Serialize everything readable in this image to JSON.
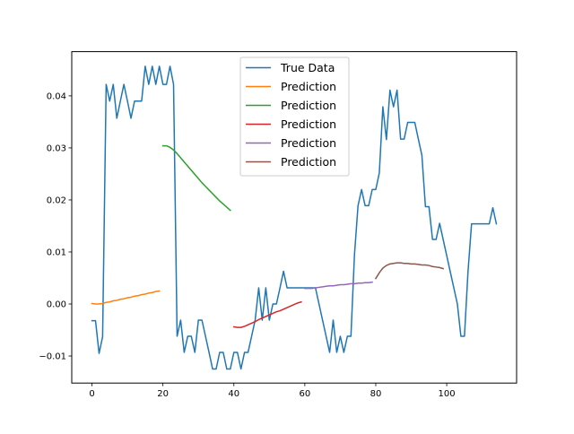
{
  "chart_data": {
    "type": "line",
    "title": "",
    "xlabel": "",
    "ylabel": "",
    "xlim": [
      -5.7,
      119.7
    ],
    "ylim": [
      -0.0152,
      0.0485
    ],
    "x_ticks": [
      0,
      20,
      40,
      60,
      80,
      100
    ],
    "x_tick_labels": [
      "0",
      "20",
      "40",
      "60",
      "80",
      "100"
    ],
    "y_ticks": [
      -0.01,
      0.0,
      0.01,
      0.02,
      0.03,
      0.04
    ],
    "y_tick_labels": [
      "−0.01",
      "0.00",
      "0.01",
      "0.02",
      "0.03",
      "0.04"
    ],
    "grid": false,
    "legend_position": "upper center",
    "series": [
      {
        "name": "True Data",
        "color": "#1f77b4",
        "x_start": 0,
        "values": [
          -0.0032,
          -0.0032,
          -0.0095,
          -0.0063,
          0.0422,
          0.039,
          0.0422,
          0.0357,
          0.039,
          0.0422,
          0.039,
          0.0357,
          0.039,
          0.039,
          0.039,
          0.0457,
          0.0422,
          0.0457,
          0.0422,
          0.0457,
          0.0422,
          0.0422,
          0.0457,
          0.0422,
          -0.0062,
          -0.0031,
          -0.0093,
          -0.0062,
          -0.0062,
          -0.0093,
          -0.0031,
          -0.0031,
          -0.0062,
          -0.0093,
          -0.0125,
          -0.0125,
          -0.0093,
          -0.0093,
          -0.0125,
          -0.0125,
          -0.0093,
          -0.0093,
          -0.0125,
          -0.0093,
          -0.0093,
          -0.0062,
          -0.0031,
          0.0031,
          -0.0031,
          0.0031,
          -0.0031,
          0.0,
          0.0,
          0.0031,
          0.0063,
          0.0031,
          0.0031,
          0.0031,
          0.0031,
          0.0031,
          0.0031,
          0.0031,
          0.0031,
          0.0031,
          0.0,
          -0.0031,
          -0.0062,
          -0.0093,
          -0.0031,
          -0.0093,
          -0.0062,
          -0.0093,
          -0.0062,
          -0.0062,
          0.0095,
          0.0189,
          0.022,
          0.0189,
          0.0189,
          0.022,
          0.022,
          0.0252,
          0.0379,
          0.0316,
          0.0411,
          0.0379,
          0.0411,
          0.0317,
          0.0317,
          0.0349,
          0.0349,
          0.0349,
          0.0317,
          0.0286,
          0.0187,
          0.0187,
          0.0124,
          0.0124,
          0.0155,
          0.0124,
          0.0093,
          0.0062,
          0.0031,
          0.0,
          -0.0062,
          -0.0062,
          0.0062,
          0.0154,
          0.0154,
          0.0154,
          0.0154,
          0.0154,
          0.0154,
          0.0185,
          0.0154
        ]
      },
      {
        "name": "Prediction",
        "color": "#ff7f0e",
        "x_start": 0,
        "values": [
          0.0001,
          0.0,
          0.0,
          0.0001,
          0.0003,
          0.0004,
          0.0006,
          0.0007,
          0.0009,
          0.001,
          0.0012,
          0.0013,
          0.0015,
          0.0016,
          0.0018,
          0.0019,
          0.0021,
          0.0022,
          0.0024,
          0.0025
        ]
      },
      {
        "name": "Prediction",
        "color": "#2ca02c",
        "x_start": 20,
        "values": [
          0.0304,
          0.0304,
          0.0301,
          0.0296,
          0.0289,
          0.0281,
          0.0273,
          0.0265,
          0.0257,
          0.0249,
          0.0241,
          0.0233,
          0.0226,
          0.0219,
          0.0212,
          0.0205,
          0.0198,
          0.0192,
          0.0186,
          0.018
        ]
      },
      {
        "name": "Prediction",
        "color": "#d62728",
        "x_start": 40,
        "values": [
          -0.0044,
          -0.0045,
          -0.0045,
          -0.0043,
          -0.004,
          -0.0037,
          -0.0034,
          -0.003,
          -0.0027,
          -0.0024,
          -0.0021,
          -0.0018,
          -0.0015,
          -0.0013,
          -0.001,
          -0.0007,
          -0.0004,
          -0.0001,
          0.0002,
          0.0004
        ]
      },
      {
        "name": "Prediction",
        "color": "#9467bd",
        "x_start": 60,
        "values": [
          0.003,
          0.003,
          0.003,
          0.0031,
          0.0032,
          0.0033,
          0.0034,
          0.0035,
          0.0035,
          0.0036,
          0.0037,
          0.0037,
          0.0038,
          0.0039,
          0.0039,
          0.004,
          0.004,
          0.0041,
          0.0041,
          0.0042
        ]
      },
      {
        "name": "Prediction",
        "color": "#8c564b",
        "x_start": 80,
        "values": [
          0.0049,
          0.006,
          0.0069,
          0.0074,
          0.0077,
          0.0078,
          0.0079,
          0.0079,
          0.0078,
          0.0078,
          0.0077,
          0.0077,
          0.0076,
          0.0075,
          0.0075,
          0.0074,
          0.0072,
          0.0071,
          0.007,
          0.0068
        ]
      }
    ]
  }
}
